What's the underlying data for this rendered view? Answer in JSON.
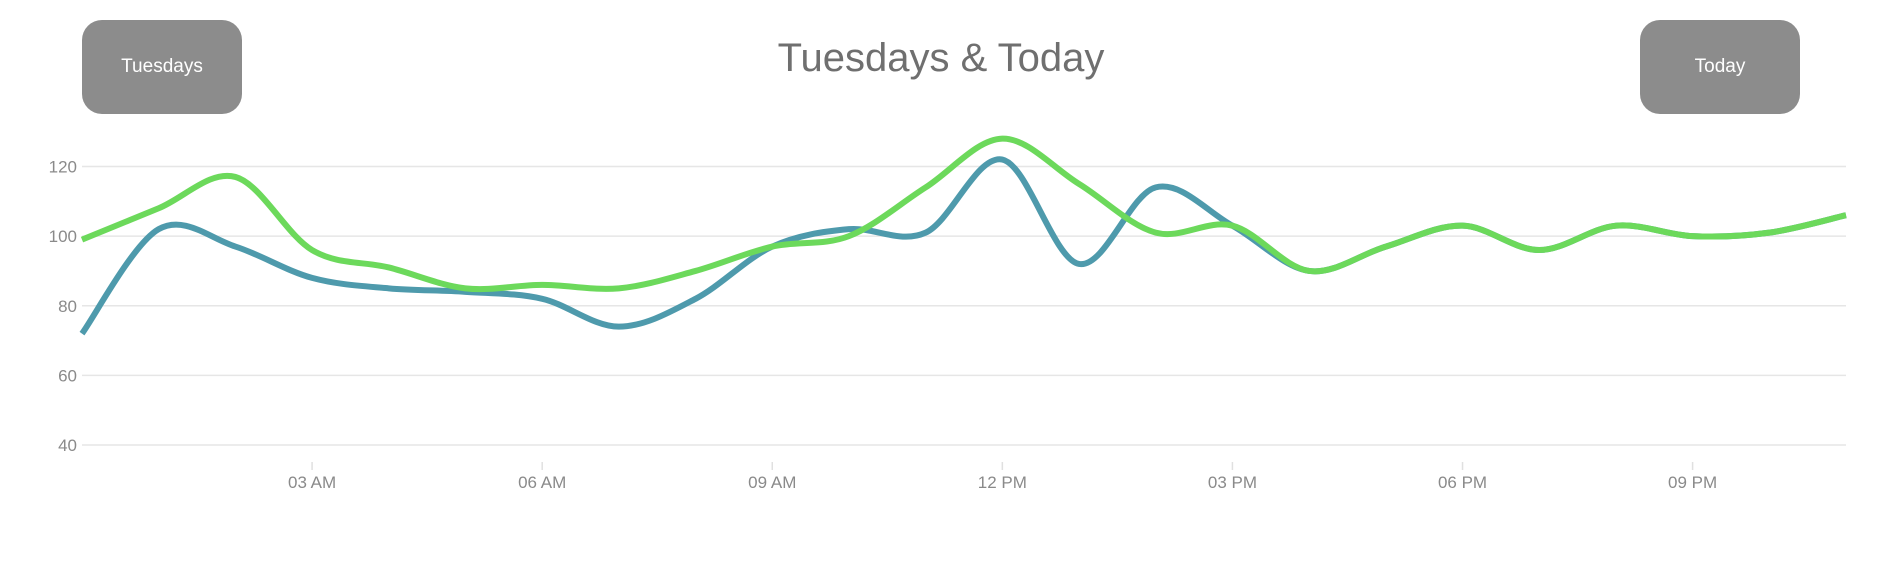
{
  "header": {
    "title": "Tuesdays & Today",
    "left_button_label": "Tuesdays",
    "right_button_label": "Today"
  },
  "chart_data": {
    "type": "line",
    "title": "Tuesdays & Today",
    "xlabel": "",
    "ylabel": "",
    "x_ticks": [
      "03 AM",
      "06 AM",
      "09 AM",
      "12 PM",
      "03 PM",
      "06 PM",
      "09 PM"
    ],
    "y_ticks": [
      40,
      60,
      80,
      100,
      120
    ],
    "ylim": [
      40,
      132
    ],
    "xlim": [
      0,
      23
    ],
    "grid": true,
    "legend": "none",
    "colors": {
      "tuesdays": "#4e9aac",
      "today": "#6cd95b"
    },
    "series": [
      {
        "key": "tuesdays",
        "x": [
          0,
          1,
          2,
          3,
          4,
          5,
          6,
          7,
          8,
          9,
          10,
          11,
          12,
          13,
          14,
          15,
          16,
          17,
          18,
          19,
          20,
          21,
          22,
          23
        ],
        "values": [
          72,
          102,
          97,
          88,
          85,
          84,
          82,
          74,
          82,
          97,
          102,
          101,
          122,
          92,
          114,
          103,
          90,
          97,
          103,
          96,
          103,
          100,
          101,
          106
        ]
      },
      {
        "key": "today",
        "x": [
          0,
          1,
          2,
          3,
          4,
          5,
          6,
          7,
          8,
          9,
          10,
          11,
          12,
          13,
          14,
          15,
          16,
          17,
          18,
          19,
          20,
          21,
          22,
          23
        ],
        "values": [
          99,
          108,
          117,
          96,
          91,
          85,
          86,
          85,
          90,
          97,
          100,
          114,
          128,
          115,
          101,
          103,
          90,
          97,
          103,
          96,
          103,
          100,
          101,
          106
        ]
      }
    ]
  }
}
